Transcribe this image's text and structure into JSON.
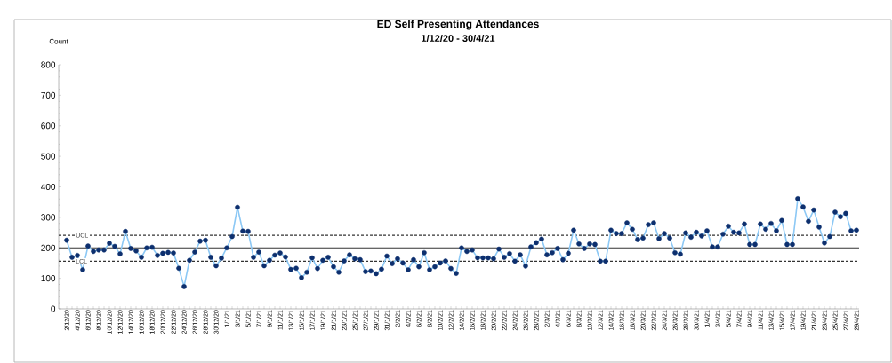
{
  "chart_data": {
    "type": "line",
    "title": "ED Self Presenting Attendances",
    "subtitle": "1/12/20 - 30/4/21",
    "ylabel": "Count",
    "categories": [
      "2/12/20",
      null,
      "4/12/20",
      null,
      "6/12/20",
      null,
      "8/12/20",
      null,
      "10/12/20",
      null,
      "12/12/20",
      null,
      "14/12/20",
      null,
      "16/12/20",
      null,
      "18/12/20",
      null,
      "20/12/20",
      null,
      "22/12/20",
      null,
      "24/12/20",
      null,
      "26/12/20",
      null,
      "28/12/20",
      null,
      "30/12/20",
      null,
      "1/1/21",
      null,
      "3/1/21",
      null,
      "5/1/21",
      null,
      "7/1/21",
      null,
      "9/1/21",
      null,
      "11/1/21",
      null,
      "13/1/21",
      null,
      "15/1/21",
      null,
      "17/1/21",
      null,
      "19/1/21",
      null,
      "21/1/21",
      null,
      "23/1/21",
      null,
      "25/1/21",
      null,
      "27/1/21",
      null,
      "29/1/21",
      null,
      "31/1/21",
      null,
      "2/2/21",
      null,
      "4/2/21",
      null,
      "6/2/21",
      null,
      "8/2/21",
      null,
      "10/2/21",
      null,
      "12/2/21",
      null,
      "14/2/21",
      null,
      "16/2/21",
      null,
      "18/2/21",
      null,
      "20/2/21",
      null,
      "22/2/21",
      null,
      "24/2/21",
      null,
      "26/2/21",
      null,
      "28/2/21",
      null,
      "2/3/21",
      null,
      "4/3/21",
      null,
      "6/3/21",
      null,
      "8/3/21",
      null,
      "10/3/21",
      null,
      "12/3/21",
      null,
      "14/3/21",
      null,
      "16/3/21",
      null,
      "18/3/21",
      null,
      "20/3/21",
      null,
      "22/3/21",
      null,
      "24/3/21",
      null,
      "26/3/21",
      null,
      "28/3/21",
      null,
      "30/3/21",
      null,
      "1/4/21",
      null,
      "3/4/21",
      null,
      "5/4/21",
      null,
      "7/4/21",
      null,
      "9/4/21",
      null,
      "11/4/21",
      null,
      "13/4/21",
      null,
      "15/4/21",
      null,
      "17/4/21",
      null,
      "19/4/21",
      null,
      "21/4/21",
      null,
      "23/4/21",
      null,
      "25/4/21",
      null,
      "27/4/21",
      null,
      "29/4/21"
    ],
    "values": [
      225,
      169,
      175,
      128,
      206,
      188,
      193,
      193,
      215,
      205,
      180,
      254,
      198,
      190,
      169,
      200,
      202,
      175,
      182,
      185,
      183,
      133,
      73,
      159,
      186,
      222,
      225,
      169,
      141,
      166,
      200,
      237,
      333,
      255,
      254,
      169,
      186,
      141,
      159,
      176,
      183,
      170,
      129,
      133,
      102,
      120,
      167,
      132,
      159,
      169,
      138,
      120,
      157,
      177,
      164,
      161,
      122,
      124,
      115,
      130,
      173,
      148,
      164,
      150,
      128,
      161,
      138,
      184,
      128,
      138,
      150,
      157,
      132,
      116,
      200,
      188,
      193,
      167,
      167,
      167,
      164,
      196,
      169,
      181,
      156,
      177,
      140,
      203,
      217,
      229,
      177,
      184,
      198,
      161,
      182,
      258,
      213,
      198,
      213,
      211,
      156,
      156,
      258,
      247,
      247,
      282,
      261,
      227,
      232,
      276,
      282,
      230,
      247,
      232,
      184,
      179,
      249,
      235,
      251,
      239,
      256,
      203,
      203,
      245,
      271,
      251,
      249,
      278,
      211,
      211,
      278,
      261,
      280,
      256,
      290,
      211,
      211,
      361,
      334,
      287,
      324,
      268,
      216,
      237,
      317,
      302,
      313,
      256,
      258
    ],
    "color": "#0d2f6e",
    "marker": "circle",
    "ylim": [
      0,
      800
    ],
    "yticks": [
      0,
      100,
      200,
      300,
      400,
      500,
      600,
      700,
      800
    ],
    "ref_lines": [
      {
        "axis": "y",
        "value": 241,
        "label": "UCL",
        "line_style": "dashed"
      },
      {
        "axis": "y",
        "value": 200,
        "line_style": "solid"
      },
      {
        "axis": "y",
        "value": 156,
        "label": "LCL",
        "line_style": "dashed"
      }
    ]
  }
}
